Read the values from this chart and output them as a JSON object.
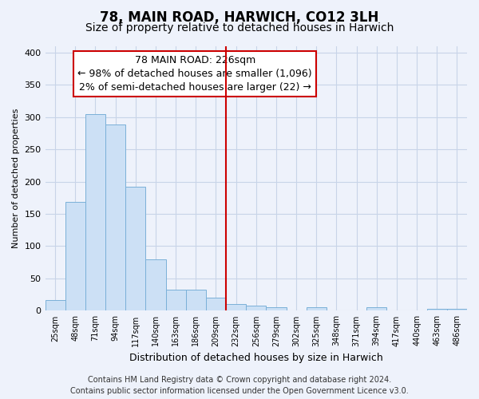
{
  "title": "78, MAIN ROAD, HARWICH, CO12 3LH",
  "subtitle": "Size of property relative to detached houses in Harwich",
  "xlabel": "Distribution of detached houses by size in Harwich",
  "ylabel": "Number of detached properties",
  "bar_labels": [
    "25sqm",
    "48sqm",
    "71sqm",
    "94sqm",
    "117sqm",
    "140sqm",
    "163sqm",
    "186sqm",
    "209sqm",
    "232sqm",
    "256sqm",
    "279sqm",
    "302sqm",
    "325sqm",
    "348sqm",
    "371sqm",
    "394sqm",
    "417sqm",
    "440sqm",
    "463sqm",
    "486sqm"
  ],
  "bar_values": [
    17,
    168,
    305,
    288,
    192,
    79,
    33,
    33,
    20,
    10,
    8,
    5,
    0,
    5,
    0,
    0,
    5,
    0,
    0,
    3,
    3
  ],
  "bar_color": "#cce0f5",
  "bar_edge_color": "#7ab0d8",
  "vline_x": 9,
  "vline_color": "#cc0000",
  "ylim": [
    0,
    410
  ],
  "yticks": [
    0,
    50,
    100,
    150,
    200,
    250,
    300,
    350,
    400
  ],
  "annotation_title": "78 MAIN ROAD: 226sqm",
  "annotation_line1": "← 98% of detached houses are smaller (1,096)",
  "annotation_line2": "2% of semi-detached houses are larger (22) →",
  "footer_line1": "Contains HM Land Registry data © Crown copyright and database right 2024.",
  "footer_line2": "Contains public sector information licensed under the Open Government Licence v3.0.",
  "bg_color": "#eef2fb",
  "grid_color": "#c8d4e8",
  "title_fontsize": 12,
  "subtitle_fontsize": 10,
  "annot_fontsize": 9,
  "footer_fontsize": 7
}
